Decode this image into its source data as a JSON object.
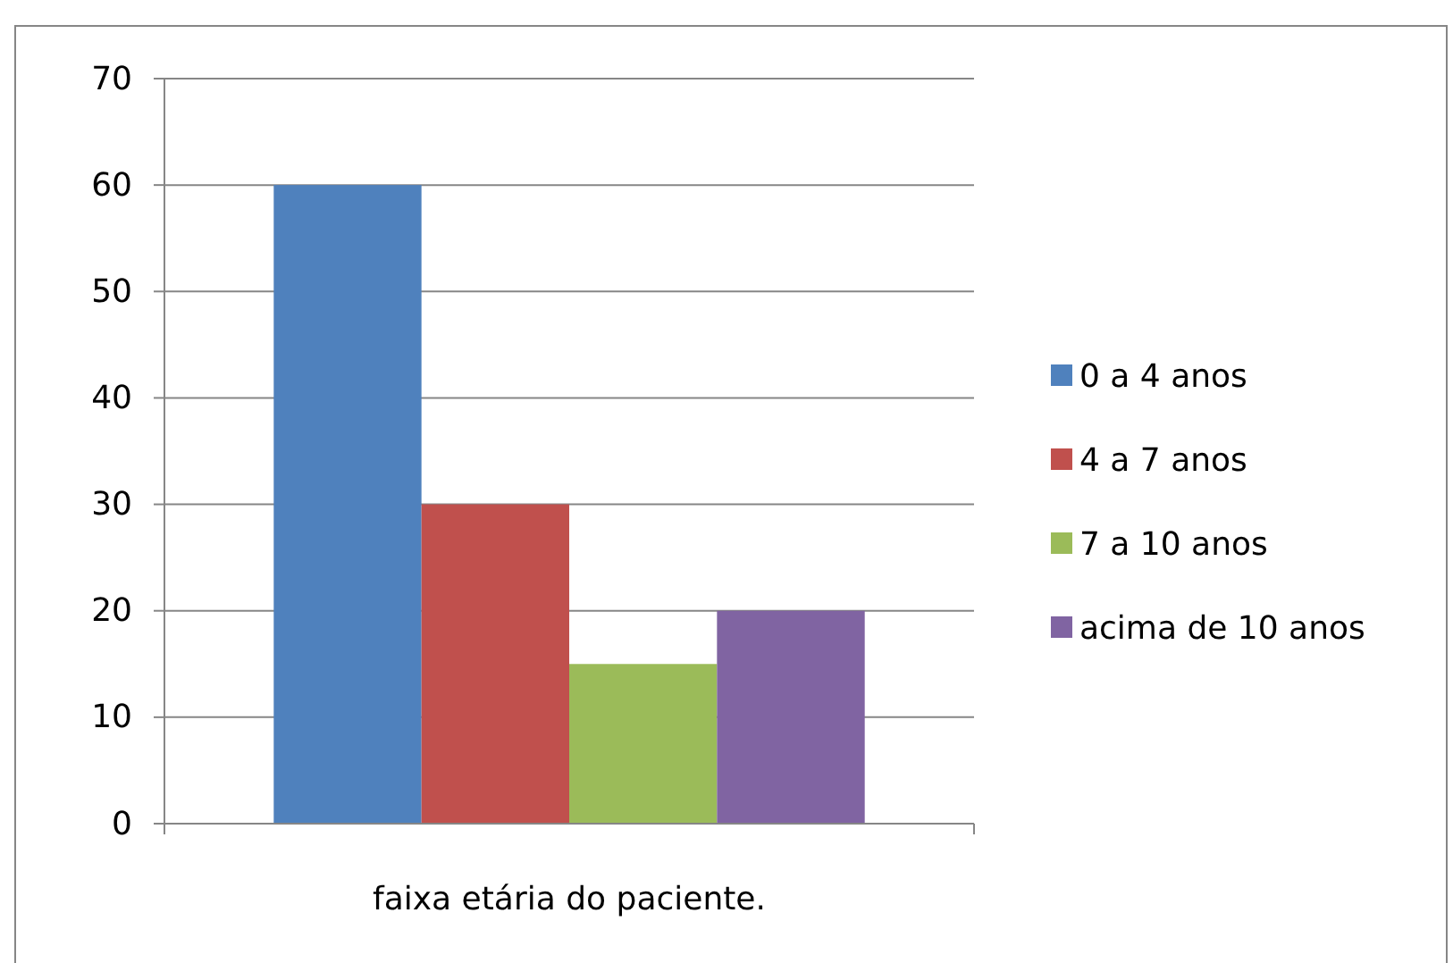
{
  "chart_data": {
    "type": "bar",
    "categories": [
      "faixa etária do paciente."
    ],
    "series": [
      {
        "name": "0 a 4 anos",
        "color": "#4f81bd",
        "values": [
          60
        ]
      },
      {
        "name": "4 a 7 anos",
        "color": "#c0504d",
        "values": [
          30
        ]
      },
      {
        "name": "7 a 10 anos",
        "color": "#9bbb59",
        "values": [
          15
        ]
      },
      {
        "name": "acima de 10 anos",
        "color": "#8064a2",
        "values": [
          20
        ]
      }
    ],
    "ylim": [
      0,
      70
    ],
    "yticks": [
      0,
      10,
      20,
      30,
      40,
      50,
      60,
      70
    ],
    "grid": "y",
    "legend": "right"
  }
}
